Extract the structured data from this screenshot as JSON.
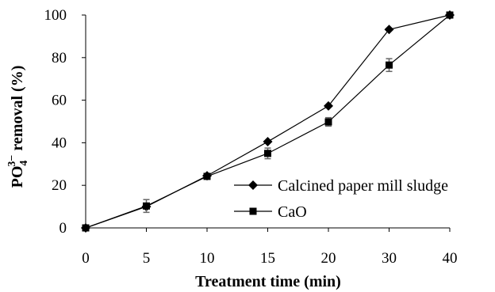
{
  "chart_data": {
    "type": "line",
    "categories": [
      "0",
      "5",
      "10",
      "15",
      "20",
      "30",
      "40"
    ],
    "series": [
      {
        "name": "Calcined paper mill sludge",
        "marker": "diamond",
        "values": [
          0,
          10,
          24.5,
          40.5,
          57.3,
          93.2,
          100
        ],
        "errors": [
          0,
          0,
          0,
          0,
          0,
          0,
          0
        ]
      },
      {
        "name": "CaO",
        "marker": "square",
        "values": [
          0,
          10.3,
          24.2,
          35,
          49.8,
          76.5,
          100
        ],
        "errors": [
          0,
          3,
          0.8,
          2.5,
          2,
          3,
          0
        ]
      }
    ],
    "xlabel": "Treatment time (min)",
    "ylabel_main": "PO",
    "ylabel_sub": "4",
    "ylabel_sup": "3−",
    "ylabel_rest": " removal (%)",
    "ylim": [
      0,
      100
    ],
    "yticks": [
      "0",
      "20",
      "40",
      "60",
      "80",
      "100"
    ],
    "grid": false,
    "legend_position": "bottom-right",
    "line_color": "#000000",
    "marker_color": "#000000",
    "errorbar_color": "#666666"
  }
}
